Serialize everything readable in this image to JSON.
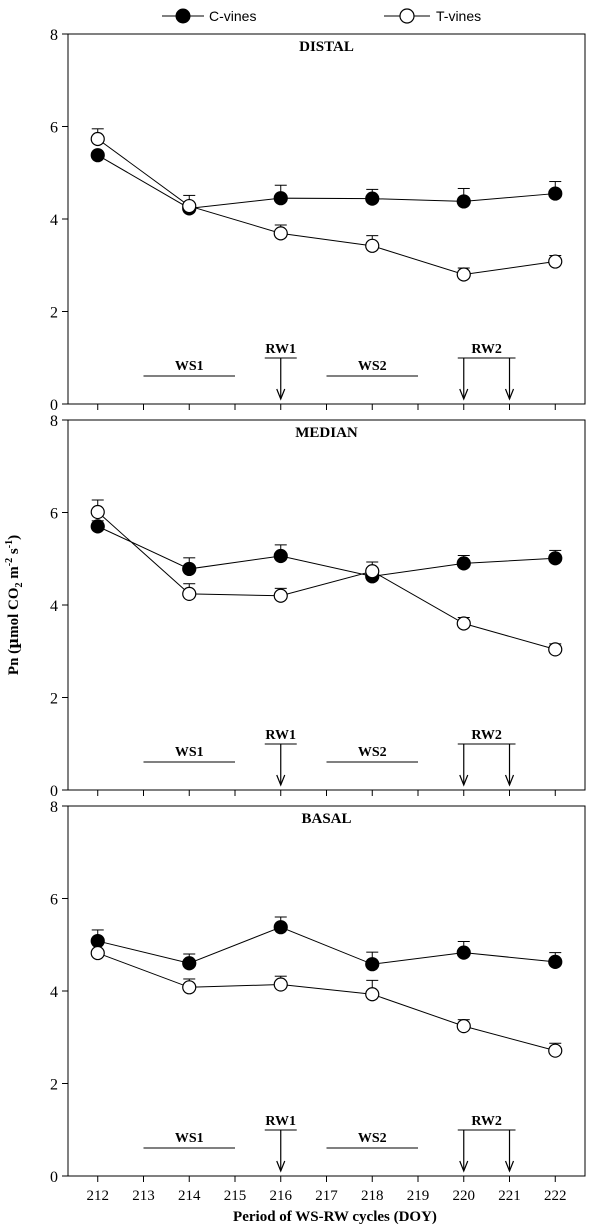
{
  "legend": [
    {
      "label": "C-vines",
      "marker": "filled-circle"
    },
    {
      "label": "T-vines",
      "marker": "open-circle"
    }
  ],
  "colors": {
    "line": "#000000",
    "filled_marker": "#000000",
    "open_marker": "#ffffff",
    "background": "#ffffff"
  },
  "chart_data": [
    {
      "type": "line",
      "title": "DISTAL",
      "x": [
        212,
        214,
        216,
        218,
        220,
        222
      ],
      "ylim": [
        0,
        8
      ],
      "yticks": [
        0,
        2,
        4,
        6,
        8
      ],
      "series": [
        {
          "name": "C-vines",
          "values": [
            5.38,
            4.23,
            4.45,
            4.44,
            4.38,
            4.55
          ],
          "errors": [
            0.0,
            0.28,
            0.28,
            0.2,
            0.28,
            0.26
          ]
        },
        {
          "name": "T-vines",
          "values": [
            5.73,
            4.28,
            3.69,
            3.42,
            2.8,
            3.08
          ],
          "errors": [
            0.22,
            0.0,
            0.18,
            0.22,
            0.14,
            0.13
          ]
        }
      ],
      "annotations": [
        {
          "label": "WS1",
          "x_start": 213,
          "x_end": 215
        },
        {
          "label": "RW1",
          "arrows": [
            216
          ]
        },
        {
          "label": "WS2",
          "x_start": 217,
          "x_end": 219
        },
        {
          "label": "RW2",
          "arrows": [
            220,
            221
          ]
        }
      ]
    },
    {
      "type": "line",
      "title": "MEDIAN",
      "x": [
        212,
        214,
        216,
        218,
        220,
        222
      ],
      "ylim": [
        0,
        8
      ],
      "yticks": [
        0,
        2,
        4,
        6,
        8
      ],
      "series": [
        {
          "name": "C-vines",
          "values": [
            5.7,
            4.78,
            5.06,
            4.62,
            4.9,
            5.01
          ],
          "errors": [
            0.12,
            0.24,
            0.24,
            0.0,
            0.17,
            0.17
          ]
        },
        {
          "name": "T-vines",
          "values": [
            6.01,
            4.24,
            4.2,
            4.73,
            3.6,
            3.04
          ],
          "errors": [
            0.26,
            0.22,
            0.16,
            0.2,
            0.13,
            0.12
          ]
        }
      ],
      "annotations": [
        {
          "label": "WS1",
          "x_start": 213,
          "x_end": 215
        },
        {
          "label": "RW1",
          "arrows": [
            216
          ]
        },
        {
          "label": "WS2",
          "x_start": 217,
          "x_end": 219
        },
        {
          "label": "RW2",
          "arrows": [
            220,
            221
          ]
        }
      ]
    },
    {
      "type": "line",
      "title": "BASAL",
      "x": [
        212,
        214,
        216,
        218,
        220,
        222
      ],
      "ylim": [
        0,
        8
      ],
      "yticks": [
        0,
        2,
        4,
        6,
        8
      ],
      "xticks": [
        212,
        213,
        214,
        215,
        216,
        217,
        218,
        219,
        220,
        221,
        222
      ],
      "xlabel": "Period of WS-RW cycles (DOY)",
      "series": [
        {
          "name": "C-vines",
          "values": [
            5.08,
            4.6,
            5.38,
            4.58,
            4.83,
            4.63
          ],
          "errors": [
            0.24,
            0.2,
            0.22,
            0.26,
            0.24,
            0.2
          ]
        },
        {
          "name": "T-vines",
          "values": [
            4.82,
            4.08,
            4.14,
            3.93,
            3.24,
            2.71
          ],
          "errors": [
            0.0,
            0.18,
            0.18,
            0.3,
            0.14,
            0.16
          ]
        }
      ],
      "annotations": [
        {
          "label": "WS1",
          "x_start": 213,
          "x_end": 215
        },
        {
          "label": "RW1",
          "arrows": [
            216
          ]
        },
        {
          "label": "WS2",
          "x_start": 217,
          "x_end": 219
        },
        {
          "label": "RW2",
          "arrows": [
            220,
            221
          ]
        }
      ]
    }
  ],
  "ylabel": {
    "prefix": "Pn (",
    "mu": "µ",
    "mol": "mol CO",
    "sub2": "2",
    "m": " m",
    "sup1": "-2",
    "s": " s",
    "sup2": "-1",
    "close": ")"
  }
}
